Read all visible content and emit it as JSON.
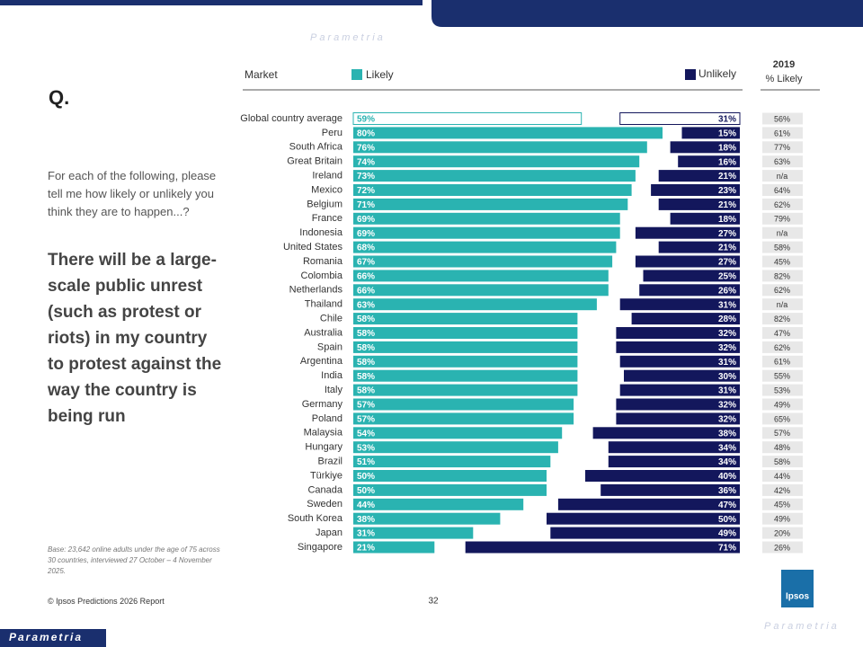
{
  "slide": {
    "question_mark": "Q.",
    "question": "For each of the following, please tell me how likely or unlikely you think they are to happen...?",
    "statement": "There will be a large-scale public unrest (such as protest or riots) in my country to protest against the way the country is being run",
    "base": "Base: 23,642 online adults under the age of 75 across 30 countries, interviewed 27 October – 4 November 2025.",
    "footer": "© Ipsos Predictions 2026 Report",
    "page": "32",
    "logo": "Ipsos",
    "brand": "Parametria"
  },
  "chart_data": {
    "type": "diverging_bar",
    "category_header": "Market",
    "categories": [
      "Global country average",
      "Peru",
      "South Africa",
      "Great Britain",
      "Ireland",
      "Mexico",
      "Belgium",
      "France",
      "Indonesia",
      "United States",
      "Romania",
      "Colombia",
      "Netherlands",
      "Thailand",
      "Chile",
      "Australia",
      "Spain",
      "Argentina",
      "India",
      "Italy",
      "Germany",
      "Poland",
      "Malaysia",
      "Hungary",
      "Brazil",
      "Türkiye",
      "Canada",
      "Sweden",
      "South Korea",
      "Japan",
      "Singapore"
    ],
    "xlim": [
      0,
      100
    ],
    "series": [
      {
        "name": "Likely",
        "color": "#2ab3b1",
        "values": [
          59,
          80,
          76,
          74,
          73,
          72,
          71,
          69,
          69,
          68,
          67,
          66,
          66,
          63,
          58,
          58,
          58,
          58,
          58,
          58,
          57,
          57,
          54,
          53,
          51,
          50,
          50,
          44,
          38,
          31,
          21
        ],
        "value_labels": [
          "59%",
          "80%",
          "76%",
          "74%",
          "73%",
          "72%",
          "71%",
          "69%",
          "69%",
          "68%",
          "67%",
          "66%",
          "66%",
          "63%",
          "58%",
          "58%",
          "58%",
          "58%",
          "58%",
          "58%",
          "57%",
          "57%",
          "54%",
          "53%",
          "51%",
          "50%",
          "50%",
          "44%",
          "38%",
          "31%",
          "21%"
        ]
      },
      {
        "name": "Unlikely",
        "color": "#13175c",
        "values": [
          31,
          15,
          18,
          16,
          21,
          23,
          21,
          18,
          27,
          21,
          27,
          25,
          26,
          31,
          28,
          32,
          32,
          31,
          30,
          31,
          32,
          32,
          38,
          34,
          34,
          40,
          36,
          47,
          50,
          49,
          71
        ],
        "value_labels": [
          "31%",
          "15%",
          "18%",
          "16%",
          "21%",
          "23%",
          "21%",
          "18%",
          "27%",
          "21%",
          "27%",
          "25%",
          "26%",
          "31%",
          "28%",
          "32%",
          "32%",
          "31%",
          "30%",
          "31%",
          "32%",
          "32%",
          "38%",
          "34%",
          "34%",
          "40%",
          "36%",
          "47%",
          "50%",
          "49%",
          "71%"
        ]
      }
    ],
    "prior_column": {
      "header": [
        "2019",
        "% Likely"
      ],
      "values": [
        "56%",
        "61%",
        "77%",
        "63%",
        "n/a",
        "64%",
        "62%",
        "79%",
        "n/a",
        "58%",
        "45%",
        "82%",
        "62%",
        "n/a",
        "82%",
        "47%",
        "62%",
        "61%",
        "55%",
        "53%",
        "49%",
        "65%",
        "57%",
        "48%",
        "58%",
        "44%",
        "42%",
        "45%",
        "49%",
        "20%",
        "26%"
      ]
    }
  }
}
